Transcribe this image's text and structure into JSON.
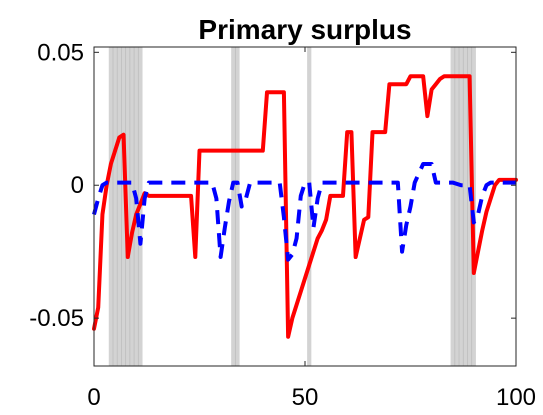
{
  "chart_data": {
    "type": "line",
    "title": "Primary surplus",
    "xlabel": "",
    "ylabel": "",
    "xlim": [
      0,
      100
    ],
    "ylim": [
      -0.068,
      0.052
    ],
    "x_ticks": [
      0,
      50,
      100
    ],
    "x_tick_labels": [
      "0",
      "50",
      "100"
    ],
    "y_ticks": [
      -0.05,
      0,
      0.05
    ],
    "y_tick_labels": [
      "-0.05",
      "0",
      "0.05"
    ],
    "grid": false,
    "legend": "none",
    "shaded_regions": [
      {
        "x0": 3.5,
        "x1": 11.5,
        "color": "#d3d3d3"
      },
      {
        "x0": 32.5,
        "x1": 34.5,
        "color": "#d3d3d3"
      },
      {
        "x0": 50.5,
        "x1": 51.5,
        "color": "#d3d3d3"
      },
      {
        "x0": 84.5,
        "x1": 90.5,
        "color": "#d3d3d3"
      }
    ],
    "series": [
      {
        "style": "solid",
        "color": "#ff0000",
        "points": [
          [
            0,
            -0.054
          ],
          [
            1,
            -0.046
          ],
          [
            2,
            -0.011
          ],
          [
            3,
            0.0
          ],
          [
            4,
            0.008
          ],
          [
            5,
            0.013
          ],
          [
            6,
            0.018
          ],
          [
            7,
            0.019
          ],
          [
            8,
            -0.027
          ],
          [
            9,
            -0.018
          ],
          [
            10,
            -0.011
          ],
          [
            11,
            -0.007
          ],
          [
            12,
            -0.003
          ],
          [
            13,
            -0.004
          ],
          [
            16,
            -0.004
          ],
          [
            20,
            -0.004
          ],
          [
            23,
            -0.004
          ],
          [
            24,
            -0.027
          ],
          [
            25,
            0.013
          ],
          [
            28,
            0.013
          ],
          [
            33,
            0.013
          ],
          [
            38,
            0.013
          ],
          [
            40,
            0.013
          ],
          [
            41,
            0.035
          ],
          [
            45,
            0.035
          ],
          [
            46,
            -0.057
          ],
          [
            47,
            -0.05
          ],
          [
            48,
            -0.045
          ],
          [
            49,
            -0.04
          ],
          [
            50,
            -0.035
          ],
          [
            51,
            -0.03
          ],
          [
            52,
            -0.025
          ],
          [
            53,
            -0.02
          ],
          [
            54,
            -0.017
          ],
          [
            55,
            -0.013
          ],
          [
            56,
            -0.004
          ],
          [
            57,
            -0.004
          ],
          [
            59,
            -0.004
          ],
          [
            60,
            0.02
          ],
          [
            61,
            0.02
          ],
          [
            62,
            -0.027
          ],
          [
            63,
            -0.02
          ],
          [
            64,
            -0.013
          ],
          [
            65,
            -0.012
          ],
          [
            66,
            0.02
          ],
          [
            67,
            0.02
          ],
          [
            69,
            0.02
          ],
          [
            70,
            0.038
          ],
          [
            74,
            0.038
          ],
          [
            75,
            0.041
          ],
          [
            78,
            0.041
          ],
          [
            79,
            0.026
          ],
          [
            80,
            0.036
          ],
          [
            81,
            0.038
          ],
          [
            82,
            0.04
          ],
          [
            83,
            0.041
          ],
          [
            89,
            0.041
          ],
          [
            90,
            -0.033
          ],
          [
            91,
            -0.025
          ],
          [
            92,
            -0.017
          ],
          [
            93,
            -0.01
          ],
          [
            94,
            -0.005
          ],
          [
            95,
            0.0
          ],
          [
            96,
            0.002
          ],
          [
            98,
            0.002
          ],
          [
            100,
            0.002
          ]
        ]
      },
      {
        "style": "dashed",
        "color": "#0000ff",
        "points": [
          [
            0,
            -0.011
          ],
          [
            1,
            -0.005
          ],
          [
            2,
            0.0
          ],
          [
            3,
            0.001
          ],
          [
            4,
            0.001
          ],
          [
            5,
            0.001
          ],
          [
            7,
            0.001
          ],
          [
            9,
            0.001
          ],
          [
            10,
            -0.005
          ],
          [
            11,
            -0.022
          ],
          [
            12,
            -0.005
          ],
          [
            13,
            0.001
          ],
          [
            18,
            0.001
          ],
          [
            24,
            0.001
          ],
          [
            28,
            0.001
          ],
          [
            29,
            -0.005
          ],
          [
            30,
            -0.027
          ],
          [
            31,
            -0.016
          ],
          [
            32,
            -0.006
          ],
          [
            33,
            0.001
          ],
          [
            34,
            0.001
          ],
          [
            35,
            -0.008
          ],
          [
            36,
            -0.005
          ],
          [
            37,
            0.001
          ],
          [
            44,
            0.001
          ],
          [
            45,
            -0.012
          ],
          [
            46,
            -0.028
          ],
          [
            47,
            -0.026
          ],
          [
            48,
            -0.02
          ],
          [
            49,
            -0.004
          ],
          [
            50,
            0.001
          ],
          [
            51,
            0.001
          ],
          [
            52,
            -0.016
          ],
          [
            53,
            -0.005
          ],
          [
            54,
            0.001
          ],
          [
            56,
            0.001
          ],
          [
            60,
            0.001
          ],
          [
            70,
            0.001
          ],
          [
            72,
            0.001
          ],
          [
            73,
            -0.025
          ],
          [
            74,
            -0.015
          ],
          [
            75,
            -0.008
          ],
          [
            76,
            0.001
          ],
          [
            78,
            0.008
          ],
          [
            80,
            0.008
          ],
          [
            81,
            0.001
          ],
          [
            85,
            0.001
          ],
          [
            87,
            0.0
          ],
          [
            89,
            0.0
          ],
          [
            90,
            -0.014
          ],
          [
            91,
            -0.011
          ],
          [
            92,
            -0.004
          ],
          [
            93,
            0.0
          ],
          [
            94,
            0.001
          ],
          [
            96,
            0.001
          ],
          [
            100,
            0.001
          ]
        ]
      }
    ]
  }
}
